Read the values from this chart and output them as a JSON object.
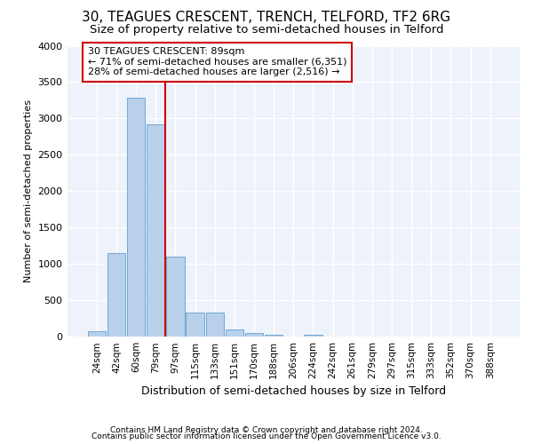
{
  "title": "30, TEAGUES CRESCENT, TRENCH, TELFORD, TF2 6RG",
  "subtitle": "Size of property relative to semi-detached houses in Telford",
  "xlabel": "Distribution of semi-detached houses by size in Telford",
  "ylabel": "Number of semi-detached properties",
  "footnote1": "Contains HM Land Registry data © Crown copyright and database right 2024.",
  "footnote2": "Contains public sector information licensed under the Open Government Licence v3.0.",
  "bar_labels": [
    "24sqm",
    "42sqm",
    "60sqm",
    "79sqm",
    "97sqm",
    "115sqm",
    "133sqm",
    "151sqm",
    "170sqm",
    "188sqm",
    "206sqm",
    "224sqm",
    "242sqm",
    "261sqm",
    "279sqm",
    "297sqm",
    "315sqm",
    "333sqm",
    "352sqm",
    "370sqm",
    "388sqm"
  ],
  "bar_values": [
    75,
    1150,
    3280,
    2920,
    1100,
    330,
    330,
    95,
    55,
    30,
    0,
    25,
    0,
    0,
    0,
    0,
    0,
    0,
    0,
    0,
    0
  ],
  "bar_color": "#b8d0ea",
  "bar_edge_color": "#6fa8d6",
  "annotation_title": "30 TEAGUES CRESCENT: 89sqm",
  "annotation_line1": "← 71% of semi-detached houses are smaller (6,351)",
  "annotation_line2": "28% of semi-detached houses are larger (2,516) →",
  "vline_color": "#cc0000",
  "ylim": [
    0,
    4000
  ],
  "yticks": [
    0,
    500,
    1000,
    1500,
    2000,
    2500,
    3000,
    3500,
    4000
  ],
  "bg_color": "#eef2fb",
  "grid_color": "#ffffff",
  "title_fontsize": 11,
  "subtitle_fontsize": 9.5,
  "annotation_fontsize": 8,
  "xlabel_fontsize": 9,
  "ylabel_fontsize": 8
}
